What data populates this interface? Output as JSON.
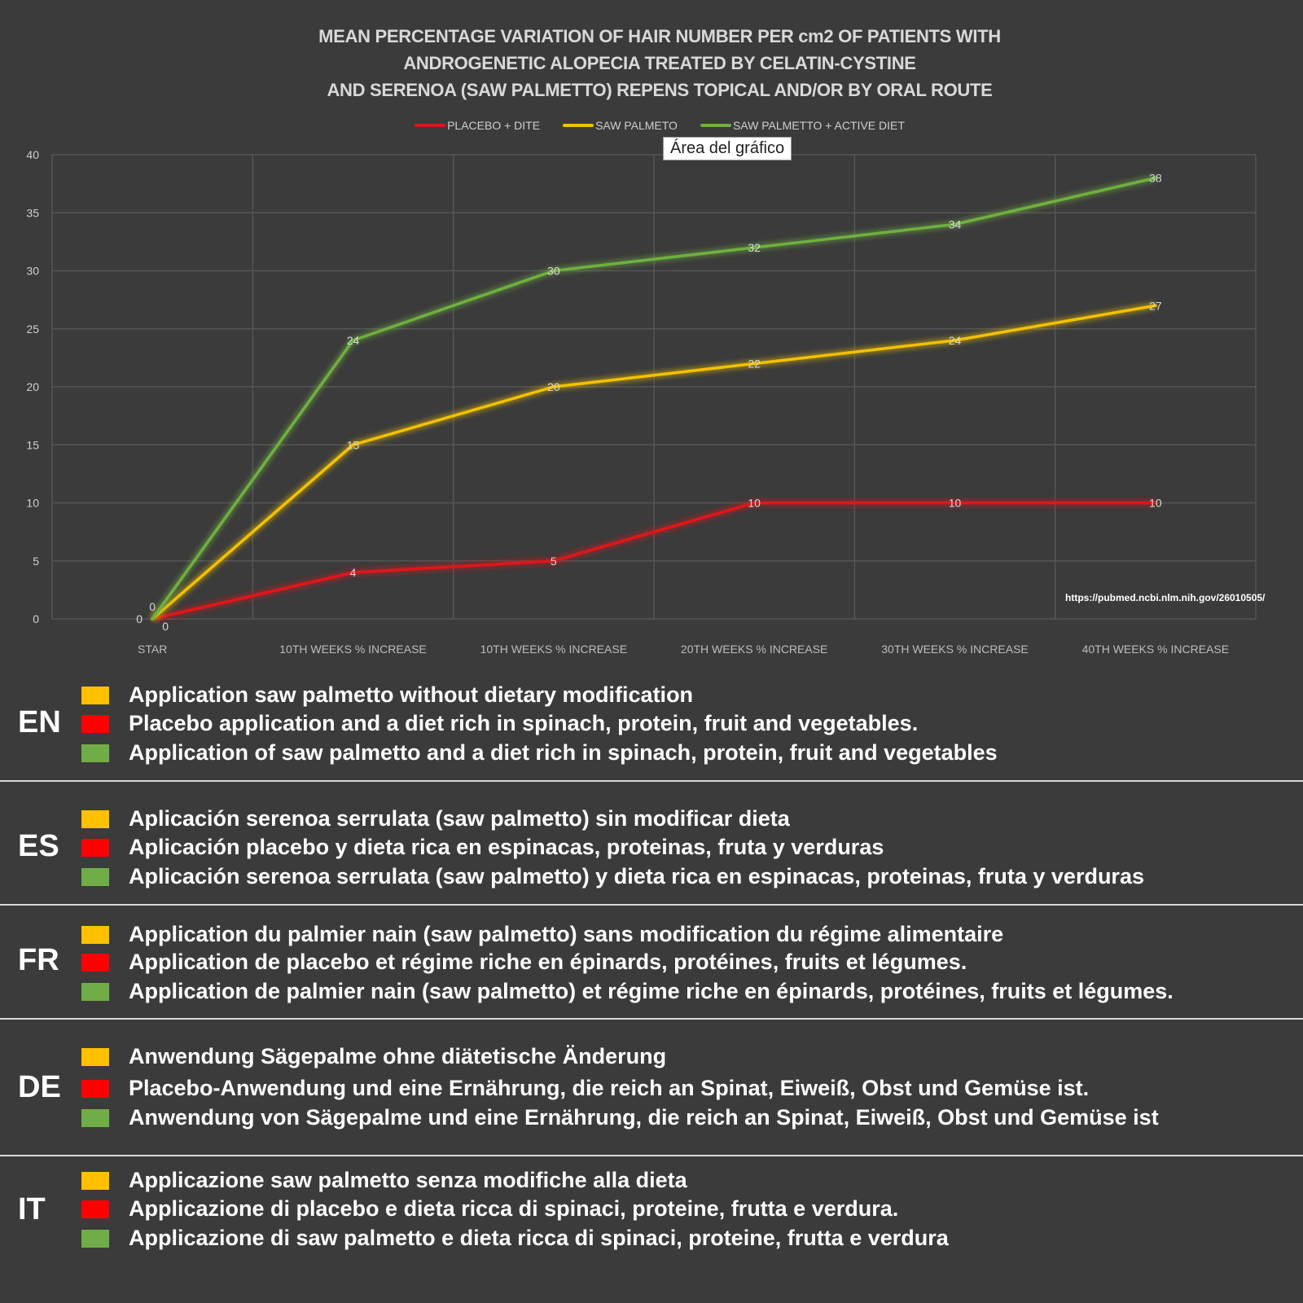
{
  "chart_data": {
    "type": "line",
    "title": [
      "MEAN PERCENTAGE VARIATION OF HAIR NUMBER PER cm2 OF PATIENTS WITH",
      "ANDROGENETIC ALOPECIA TREATED BY CELATIN-CYSTINE",
      "AND SERENOA (SAW PALMETTO) REPENS TOPICAL AND/OR BY ORAL ROUTE"
    ],
    "categories": [
      "STAR",
      "10TH WEEKS % INCREASE",
      "10TH WEEKS % INCREASE",
      "20TH WEEKS % INCREASE",
      "30TH WEEKS % INCREASE",
      "40TH WEEKS % INCREASE"
    ],
    "ylim": [
      0,
      40
    ],
    "yticks": [
      0,
      5,
      10,
      15,
      20,
      25,
      30,
      35,
      40
    ],
    "grid": true,
    "legend_position": "top",
    "series": [
      {
        "name": "PLACEBO + DITE",
        "color": "#e0161a",
        "values": [
          0,
          4,
          5,
          10,
          10,
          10
        ]
      },
      {
        "name": "SAW PALMETO",
        "color": "#f2c200",
        "values": [
          0,
          15,
          20,
          22,
          24,
          27
        ]
      },
      {
        "name": "SAW PALMETTO + ACTIVE DIET",
        "color": "#6fb03f",
        "values": [
          0,
          24,
          30,
          32,
          34,
          38
        ]
      }
    ],
    "tooltip": "Área del gráfico",
    "source": "https://pubmed.ncbi.nlm.nih.gov/26010505/"
  },
  "colors": {
    "yellow": "#ffc000",
    "red": "#ff0000",
    "green": "#70ad47"
  },
  "sections": [
    {
      "lang": "EN",
      "items": [
        {
          "color": "yellow",
          "text": "Application saw palmetto without dietary modification"
        },
        {
          "color": "red",
          "text": "Placebo application and a diet rich in spinach, protein, fruit and vegetables."
        },
        {
          "color": "green",
          "text": "Application of saw palmetto and a diet rich in spinach, protein, fruit and vegetables"
        }
      ]
    },
    {
      "lang": "ES",
      "items": [
        {
          "color": "yellow",
          "text": "Aplicación serenoa serrulata (saw palmetto) sin modificar dieta"
        },
        {
          "color": "red",
          "text": "Aplicación placebo y dieta rica en espinacas, proteinas, fruta y verduras"
        },
        {
          "color": "green",
          "text": "Aplicación serenoa serrulata (saw palmetto) y dieta rica en espinacas, proteinas, fruta y verduras"
        }
      ]
    },
    {
      "lang": "FR",
      "items": [
        {
          "color": "yellow",
          "text": "Application du palmier nain (saw palmetto) sans modification du régime alimentaire"
        },
        {
          "color": "red",
          "text": "Application de placebo et régime riche en épinards, protéines, fruits et légumes."
        },
        {
          "color": "green",
          "text": "Application de palmier nain (saw palmetto) et régime riche en épinards, protéines, fruits et légumes."
        }
      ]
    },
    {
      "lang": "DE",
      "items": [
        {
          "color": "yellow",
          "text": "Anwendung Sägepalme ohne diätetische Änderung"
        },
        {
          "color": "red",
          "text": "Placebo-Anwendung und eine Ernährung, die reich an Spinat, Eiweiß, Obst und Gemüse ist."
        },
        {
          "color": "green",
          "text": "Anwendung von Sägepalme und eine Ernährung, die reich an Spinat, Eiweiß, Obst und Gemüse ist"
        }
      ]
    },
    {
      "lang": "IT",
      "items": [
        {
          "color": "yellow",
          "text": "Applicazione saw palmetto senza modifiche alla dieta"
        },
        {
          "color": "red",
          "text": "Applicazione di placebo e dieta ricca di spinaci, proteine, frutta e verdura."
        },
        {
          "color": "green",
          "text": "Applicazione di saw palmetto e dieta ricca di spinaci, proteine, frutta e verdura"
        }
      ]
    }
  ]
}
